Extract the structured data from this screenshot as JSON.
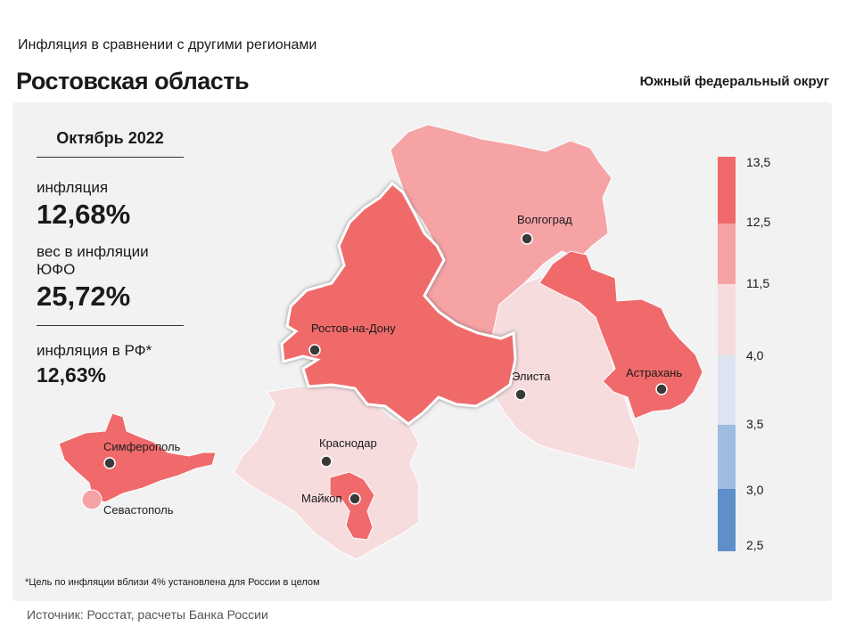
{
  "header": {
    "subtitle": "Инфляция в сравнении с другими регионами",
    "title": "Ростовская область",
    "district": "Южный федеральный округ"
  },
  "stats": {
    "period": "Октябрь 2022",
    "inflation_label": "инфляция",
    "inflation_value": "12,68%",
    "weight_label": "вес в инфляции ЮФО",
    "weight_value": "25,72%",
    "russia_label": "инфляция в РФ*",
    "russia_value": "12,63%"
  },
  "legend": {
    "labels": [
      "13,5",
      "12,5",
      "11,5",
      "4,0",
      "3,5",
      "3,0",
      "2,5"
    ],
    "colors": [
      "#f06a6b",
      "#f5a3a5",
      "#f7dcde",
      "#dde4f1",
      "#9dbce0",
      "#5f8fcb"
    ]
  },
  "map": {
    "highlighted_region": "Ростовская область",
    "region_colors": {
      "rostov": "#f06a6b",
      "volgograd": "#f5a3a5",
      "astrakhan": "#f06a6b",
      "kalmykia": "#f7dcde",
      "krasnodar": "#f7dcde",
      "adygea": "#f06a6b",
      "crimea": "#f06a6b",
      "sevastopol": "#f5a3a5"
    },
    "cities": {
      "volgograd": "Волгоград",
      "rostov": "Ростов-на-Дону",
      "elista": "Элиста",
      "astrakhan": "Астрахань",
      "krasnodar": "Краснодар",
      "maykop": "Майкоп",
      "simferopol": "Симферополь",
      "sevastopol": "Севастополь"
    }
  },
  "footnote": "*Цель по инфляции вблизи 4% установлена для России в целом",
  "source": "Источник: Росстат, расчеты Банка России"
}
